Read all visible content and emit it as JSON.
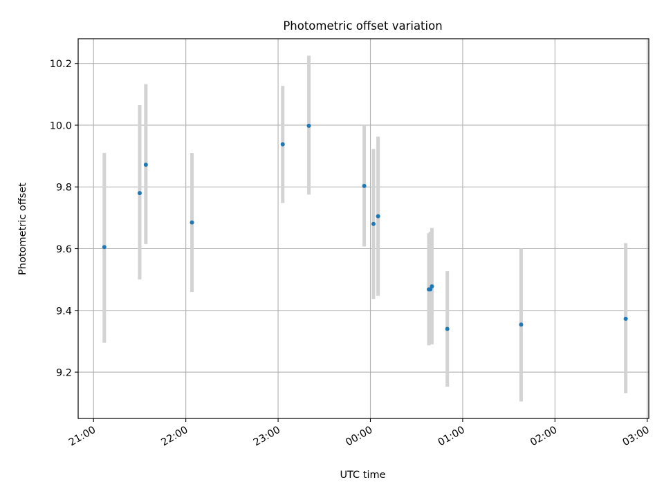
{
  "chart_data": {
    "type": "scatter",
    "title": "Photometric offset variation",
    "xlabel": "UTC time",
    "ylabel": "Photometric offset",
    "x_ticks": [
      "21:00",
      "22:00",
      "23:00",
      "00:00",
      "01:00",
      "02:00",
      "03:00"
    ],
    "y_ticks": [
      "9.2",
      "9.4",
      "9.6",
      "9.8",
      "10.0",
      "10.2"
    ],
    "xlim": [
      "20:50",
      "03:01"
    ],
    "ylim": [
      9.05,
      10.28
    ],
    "grid": true,
    "point_color": "#1f77b4",
    "errorbar_color": "#d3d3d3",
    "points": [
      {
        "x": "21:07",
        "y": 9.605,
        "yerr_low": 9.295,
        "yerr_high": 9.91
      },
      {
        "x": "21:30",
        "y": 9.78,
        "yerr_low": 9.5,
        "yerr_high": 10.065
      },
      {
        "x": "21:34",
        "y": 9.872,
        "yerr_low": 9.615,
        "yerr_high": 10.133
      },
      {
        "x": "22:04",
        "y": 9.685,
        "yerr_low": 9.46,
        "yerr_high": 9.91
      },
      {
        "x": "23:03",
        "y": 9.938,
        "yerr_low": 9.748,
        "yerr_high": 10.127
      },
      {
        "x": "23:20",
        "y": 9.998,
        "yerr_low": 9.775,
        "yerr_high": 10.225
      },
      {
        "x": "23:56",
        "y": 9.803,
        "yerr_low": 9.607,
        "yerr_high": 10.0
      },
      {
        "x": "00:02",
        "y": 9.68,
        "yerr_low": 9.437,
        "yerr_high": 9.923
      },
      {
        "x": "00:05",
        "y": 9.705,
        "yerr_low": 9.447,
        "yerr_high": 9.963
      },
      {
        "x": "00:38",
        "y": 9.468,
        "yerr_low": 9.287,
        "yerr_high": 9.65
      },
      {
        "x": "00:39",
        "y": 9.468,
        "yerr_low": 9.3,
        "yerr_high": 9.655
      },
      {
        "x": "00:40",
        "y": 9.478,
        "yerr_low": 9.29,
        "yerr_high": 9.667
      },
      {
        "x": "00:50",
        "y": 9.34,
        "yerr_low": 9.153,
        "yerr_high": 9.527
      },
      {
        "x": "01:38",
        "y": 9.354,
        "yerr_low": 9.105,
        "yerr_high": 9.6
      },
      {
        "x": "02:46",
        "y": 9.373,
        "yerr_low": 9.132,
        "yerr_high": 9.618
      }
    ]
  }
}
